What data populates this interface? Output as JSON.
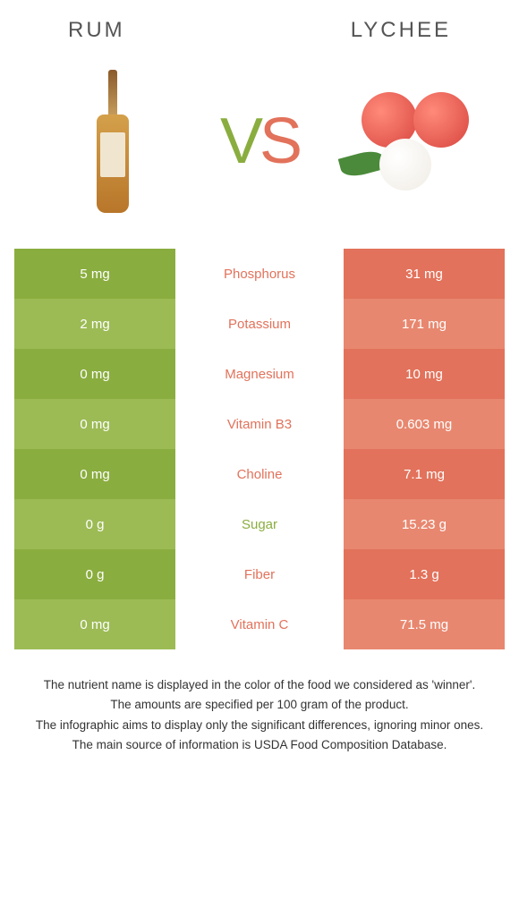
{
  "titles": {
    "left": "Rum",
    "right": "Lychee",
    "vs_v": "V",
    "vs_s": "S"
  },
  "colors": {
    "left_main": "#8aad3f",
    "left_alt": "#9cbb55",
    "right_main": "#e2725b",
    "right_alt": "#e8876f",
    "mid_green": "#8aad3f",
    "mid_orange": "#e2725b"
  },
  "rows": [
    {
      "left": "5 mg",
      "mid": "Phosphorus",
      "right": "31 mg",
      "winner": "right"
    },
    {
      "left": "2 mg",
      "mid": "Potassium",
      "right": "171 mg",
      "winner": "right"
    },
    {
      "left": "0 mg",
      "mid": "Magnesium",
      "right": "10 mg",
      "winner": "right"
    },
    {
      "left": "0 mg",
      "mid": "Vitamin B3",
      "right": "0.603 mg",
      "winner": "right"
    },
    {
      "left": "0 mg",
      "mid": "Choline",
      "right": "7.1 mg",
      "winner": "right"
    },
    {
      "left": "0 g",
      "mid": "Sugar",
      "right": "15.23 g",
      "winner": "left"
    },
    {
      "left": "0 g",
      "mid": "Fiber",
      "right": "1.3 g",
      "winner": "right"
    },
    {
      "left": "0 mg",
      "mid": "Vitamin C",
      "right": "71.5 mg",
      "winner": "right"
    }
  ],
  "footer": [
    "The nutrient name is displayed in the color of the food we considered as 'winner'.",
    "The amounts are specified per 100 gram of the product.",
    "The infographic aims to display only the significant differences, ignoring minor ones.",
    "The main source of information is USDA Food Composition Database."
  ]
}
